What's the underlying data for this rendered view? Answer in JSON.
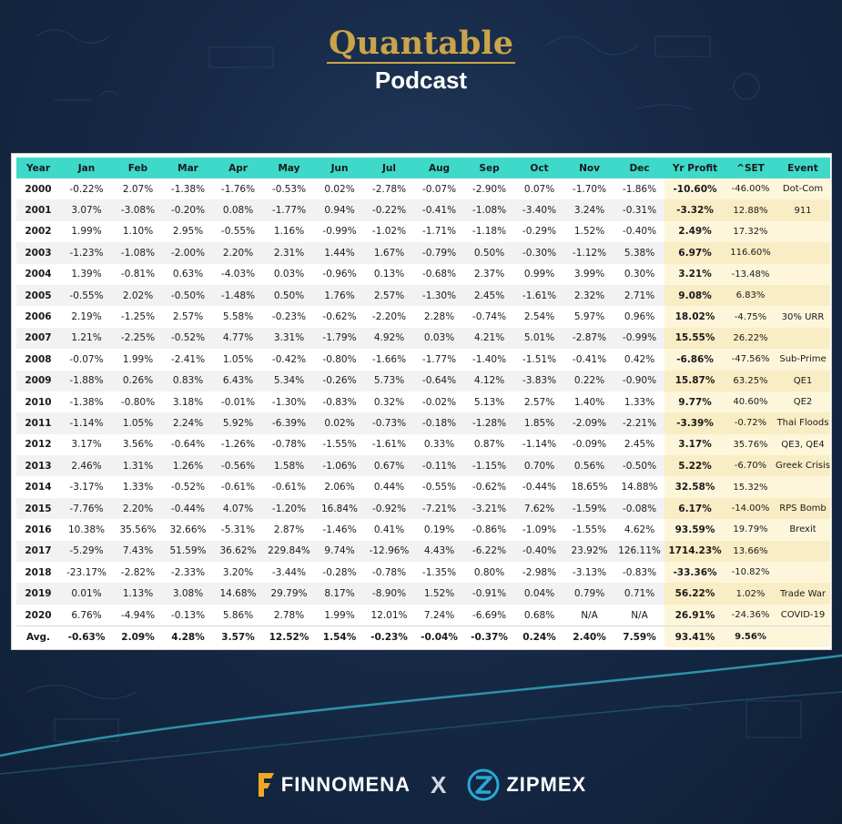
{
  "header": {
    "brand": "Quantable",
    "subtitle": "Podcast"
  },
  "table": {
    "columns": [
      "Year",
      "Jan",
      "Feb",
      "Mar",
      "Apr",
      "May",
      "Jun",
      "Jul",
      "Aug",
      "Sep",
      "Oct",
      "Nov",
      "Dec",
      "Yr Profit",
      "^SET",
      "Event"
    ],
    "rows": [
      [
        "2000",
        "-0.22%",
        "2.07%",
        "-1.38%",
        "-1.76%",
        "-0.53%",
        "0.02%",
        "-2.78%",
        "-0.07%",
        "-2.90%",
        "0.07%",
        "-1.70%",
        "-1.86%",
        "-10.60%",
        "-46.00%",
        "Dot-Com"
      ],
      [
        "2001",
        "3.07%",
        "-3.08%",
        "-0.20%",
        "0.08%",
        "-1.77%",
        "0.94%",
        "-0.22%",
        "-0.41%",
        "-1.08%",
        "-3.40%",
        "3.24%",
        "-0.31%",
        "-3.32%",
        "12.88%",
        "911"
      ],
      [
        "2002",
        "1.99%",
        "1.10%",
        "2.95%",
        "-0.55%",
        "1.16%",
        "-0.99%",
        "-1.02%",
        "-1.71%",
        "-1.18%",
        "-0.29%",
        "1.52%",
        "-0.40%",
        "2.49%",
        "17.32%",
        ""
      ],
      [
        "2003",
        "-1.23%",
        "-1.08%",
        "-2.00%",
        "2.20%",
        "2.31%",
        "1.44%",
        "1.67%",
        "-0.79%",
        "0.50%",
        "-0.30%",
        "-1.12%",
        "5.38%",
        "6.97%",
        "116.60%",
        ""
      ],
      [
        "2004",
        "1.39%",
        "-0.81%",
        "0.63%",
        "-4.03%",
        "0.03%",
        "-0.96%",
        "0.13%",
        "-0.68%",
        "2.37%",
        "0.99%",
        "3.99%",
        "0.30%",
        "3.21%",
        "-13.48%",
        ""
      ],
      [
        "2005",
        "-0.55%",
        "2.02%",
        "-0.50%",
        "-1.48%",
        "0.50%",
        "1.76%",
        "2.57%",
        "-1.30%",
        "2.45%",
        "-1.61%",
        "2.32%",
        "2.71%",
        "9.08%",
        "6.83%",
        ""
      ],
      [
        "2006",
        "2.19%",
        "-1.25%",
        "2.57%",
        "5.58%",
        "-0.23%",
        "-0.62%",
        "-2.20%",
        "2.28%",
        "-0.74%",
        "2.54%",
        "5.97%",
        "0.96%",
        "18.02%",
        "-4.75%",
        "30% URR"
      ],
      [
        "2007",
        "1.21%",
        "-2.25%",
        "-0.52%",
        "4.77%",
        "3.31%",
        "-1.79%",
        "4.92%",
        "0.03%",
        "4.21%",
        "5.01%",
        "-2.87%",
        "-0.99%",
        "15.55%",
        "26.22%",
        ""
      ],
      [
        "2008",
        "-0.07%",
        "1.99%",
        "-2.41%",
        "1.05%",
        "-0.42%",
        "-0.80%",
        "-1.66%",
        "-1.77%",
        "-1.40%",
        "-1.51%",
        "-0.41%",
        "0.42%",
        "-6.86%",
        "-47.56%",
        "Sub-Prime"
      ],
      [
        "2009",
        "-1.88%",
        "0.26%",
        "0.83%",
        "6.43%",
        "5.34%",
        "-0.26%",
        "5.73%",
        "-0.64%",
        "4.12%",
        "-3.83%",
        "0.22%",
        "-0.90%",
        "15.87%",
        "63.25%",
        "QE1"
      ],
      [
        "2010",
        "-1.38%",
        "-0.80%",
        "3.18%",
        "-0.01%",
        "-1.30%",
        "-0.83%",
        "0.32%",
        "-0.02%",
        "5.13%",
        "2.57%",
        "1.40%",
        "1.33%",
        "9.77%",
        "40.60%",
        "QE2"
      ],
      [
        "2011",
        "-1.14%",
        "1.05%",
        "2.24%",
        "5.92%",
        "-6.39%",
        "0.02%",
        "-0.73%",
        "-0.18%",
        "-1.28%",
        "1.85%",
        "-2.09%",
        "-2.21%",
        "-3.39%",
        "-0.72%",
        "Thai Floods"
      ],
      [
        "2012",
        "3.17%",
        "3.56%",
        "-0.64%",
        "-1.26%",
        "-0.78%",
        "-1.55%",
        "-1.61%",
        "0.33%",
        "0.87%",
        "-1.14%",
        "-0.09%",
        "2.45%",
        "3.17%",
        "35.76%",
        "QE3, QE4"
      ],
      [
        "2013",
        "2.46%",
        "1.31%",
        "1.26%",
        "-0.56%",
        "1.58%",
        "-1.06%",
        "0.67%",
        "-0.11%",
        "-1.15%",
        "0.70%",
        "0.56%",
        "-0.50%",
        "5.22%",
        "-6.70%",
        "Greek Crisis"
      ],
      [
        "2014",
        "-3.17%",
        "1.33%",
        "-0.52%",
        "-0.61%",
        "-0.61%",
        "2.06%",
        "0.44%",
        "-0.55%",
        "-0.62%",
        "-0.44%",
        "18.65%",
        "14.88%",
        "32.58%",
        "15.32%",
        ""
      ],
      [
        "2015",
        "-7.76%",
        "2.20%",
        "-0.44%",
        "4.07%",
        "-1.20%",
        "16.84%",
        "-0.92%",
        "-7.21%",
        "-3.21%",
        "7.62%",
        "-1.59%",
        "-0.08%",
        "6.17%",
        "-14.00%",
        "RPS Bomb"
      ],
      [
        "2016",
        "10.38%",
        "35.56%",
        "32.66%",
        "-5.31%",
        "2.87%",
        "-1.46%",
        "0.41%",
        "0.19%",
        "-0.86%",
        "-1.09%",
        "-1.55%",
        "4.62%",
        "93.59%",
        "19.79%",
        "Brexit"
      ],
      [
        "2017",
        "-5.29%",
        "7.43%",
        "51.59%",
        "36.62%",
        "229.84%",
        "9.74%",
        "-12.96%",
        "4.43%",
        "-6.22%",
        "-0.40%",
        "23.92%",
        "126.11%",
        "1714.23%",
        "13.66%",
        ""
      ],
      [
        "2018",
        "-23.17%",
        "-2.82%",
        "-2.33%",
        "3.20%",
        "-3.44%",
        "-0.28%",
        "-0.78%",
        "-1.35%",
        "0.80%",
        "-2.98%",
        "-3.13%",
        "-0.83%",
        "-33.36%",
        "-10.82%",
        ""
      ],
      [
        "2019",
        "0.01%",
        "1.13%",
        "3.08%",
        "14.68%",
        "29.79%",
        "8.17%",
        "-8.90%",
        "1.52%",
        "-0.91%",
        "0.04%",
        "0.79%",
        "0.71%",
        "56.22%",
        "1.02%",
        "Trade War"
      ],
      [
        "2020",
        "6.76%",
        "-4.94%",
        "-0.13%",
        "5.86%",
        "2.78%",
        "1.99%",
        "12.01%",
        "7.24%",
        "-6.69%",
        "0.68%",
        "N/A",
        "N/A",
        "26.91%",
        "-24.36%",
        "COVID-19"
      ]
    ],
    "average": [
      "Avg.",
      "-0.63%",
      "2.09%",
      "4.28%",
      "3.57%",
      "12.52%",
      "1.54%",
      "-0.23%",
      "-0.04%",
      "-0.37%",
      "0.24%",
      "2.40%",
      "7.59%",
      "93.41%",
      "9.56%",
      ""
    ]
  },
  "footer": {
    "left_logo": "FINNOMENA",
    "separator": "X",
    "right_logo": "ZIPMEX"
  },
  "colors": {
    "header_row": "#3ed9c9",
    "brand_gold": "#c9a44a",
    "profit_col": "#fdf6db",
    "background": "#162a47"
  }
}
